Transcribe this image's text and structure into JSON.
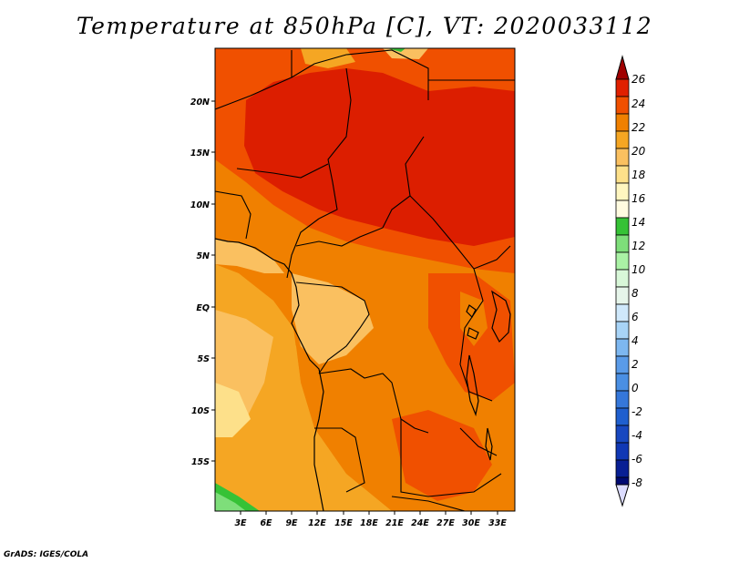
{
  "title": "Temperature at 850hPa [C], VT: 2020033112",
  "credit": "GrADS: IGES/COLA",
  "map": {
    "lon_range": [
      0,
      35
    ],
    "lat_range": [
      -20,
      25
    ],
    "lon_ticks": [
      "3E",
      "6E",
      "9E",
      "12E",
      "15E",
      "18E",
      "21E",
      "24E",
      "27E",
      "30E",
      "33E"
    ],
    "lat_ticks": [
      "20N",
      "15N",
      "10N",
      "5N",
      "EQ",
      "5S",
      "10S",
      "15S"
    ]
  },
  "colorbar": {
    "levels": [
      "26",
      "24",
      "22",
      "20",
      "18",
      "16",
      "14",
      "12",
      "10",
      "8",
      "6",
      "4",
      "2",
      "0",
      "-2",
      "-4",
      "-6",
      "-8"
    ],
    "colors": [
      "#a00000",
      "#e02000",
      "#f05000",
      "#f08000",
      "#f5a623",
      "#fac060",
      "#fde08a",
      "#fff6c0",
      "#36c236",
      "#7ede7a",
      "#aaf2a5",
      "#d8f7d8",
      "#cfe8fb",
      "#a8d4f7",
      "#7db7f0",
      "#4a8fe3",
      "#1f5fcf",
      "#1038b5",
      "#000a72",
      "#dcdcff"
    ]
  }
}
